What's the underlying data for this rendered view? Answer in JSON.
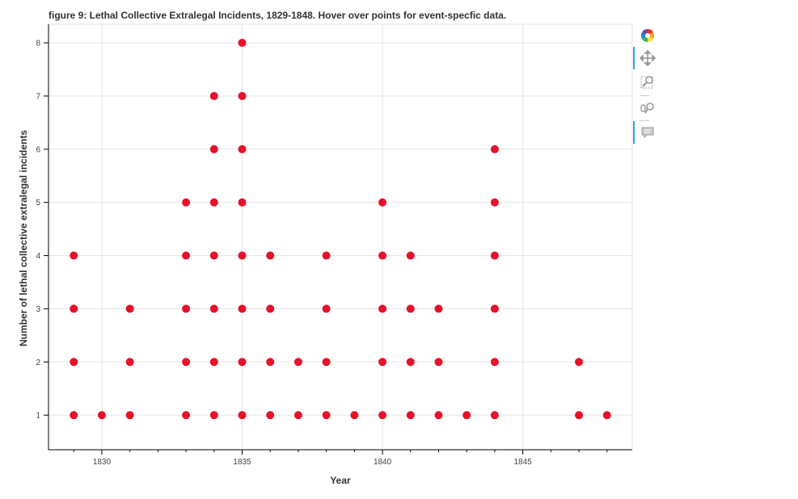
{
  "title": "figure 9: Lethal Collective Extralegal Incidents, 1829-1848. Hover over points for event-specfic data.",
  "toolbar": {
    "tools": [
      "bokeh-logo",
      "pan-icon",
      "box-zoom-icon",
      "wheel-zoom-icon",
      "hover-icon"
    ]
  },
  "chart_data": {
    "type": "scatter",
    "title": "figure 9: Lethal Collective Extralegal Incidents, 1829-1848. Hover over points for event-specfic data.",
    "xlabel": "Year",
    "ylabel": "Number of lethal collective extralegal incidents",
    "xlim": [
      1828.1,
      1848.9
    ],
    "ylim": [
      0.35,
      8.35
    ],
    "x_ticks": [
      1830,
      1835,
      1840,
      1845
    ],
    "y_ticks": [
      1,
      2,
      3,
      4,
      5,
      6,
      7,
      8
    ],
    "grid": true,
    "marker_color": "#e8102a",
    "points": [
      [
        1829,
        1
      ],
      [
        1829,
        2
      ],
      [
        1829,
        3
      ],
      [
        1829,
        4
      ],
      [
        1830,
        1
      ],
      [
        1831,
        1
      ],
      [
        1831,
        2
      ],
      [
        1831,
        3
      ],
      [
        1833,
        1
      ],
      [
        1833,
        2
      ],
      [
        1833,
        3
      ],
      [
        1833,
        4
      ],
      [
        1833,
        5
      ],
      [
        1834,
        1
      ],
      [
        1834,
        2
      ],
      [
        1834,
        3
      ],
      [
        1834,
        4
      ],
      [
        1834,
        5
      ],
      [
        1834,
        6
      ],
      [
        1834,
        7
      ],
      [
        1835,
        1
      ],
      [
        1835,
        2
      ],
      [
        1835,
        3
      ],
      [
        1835,
        4
      ],
      [
        1835,
        5
      ],
      [
        1835,
        6
      ],
      [
        1835,
        7
      ],
      [
        1835,
        8
      ],
      [
        1836,
        1
      ],
      [
        1836,
        2
      ],
      [
        1836,
        3
      ],
      [
        1836,
        4
      ],
      [
        1837,
        1
      ],
      [
        1837,
        2
      ],
      [
        1838,
        1
      ],
      [
        1838,
        2
      ],
      [
        1838,
        3
      ],
      [
        1838,
        4
      ],
      [
        1839,
        1
      ],
      [
        1840,
        1
      ],
      [
        1840,
        2
      ],
      [
        1840,
        3
      ],
      [
        1840,
        4
      ],
      [
        1840,
        5
      ],
      [
        1841,
        1
      ],
      [
        1841,
        2
      ],
      [
        1841,
        3
      ],
      [
        1841,
        4
      ],
      [
        1842,
        1
      ],
      [
        1842,
        2
      ],
      [
        1842,
        3
      ],
      [
        1843,
        1
      ],
      [
        1844,
        1
      ],
      [
        1844,
        2
      ],
      [
        1844,
        3
      ],
      [
        1844,
        4
      ],
      [
        1844,
        5
      ],
      [
        1844,
        6
      ],
      [
        1847,
        1
      ],
      [
        1847,
        2
      ],
      [
        1848,
        1
      ]
    ]
  }
}
